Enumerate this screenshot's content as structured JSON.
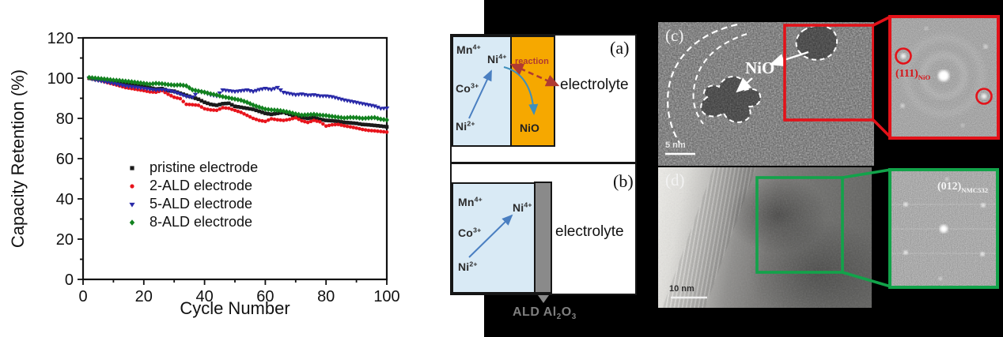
{
  "chart_data": {
    "type": "scatter",
    "xlabel": "Cycle Number",
    "ylabel": "Capacity Retention (%)",
    "xlim": [
      0,
      100
    ],
    "ylim": [
      0,
      120
    ],
    "xticks": [
      0,
      20,
      40,
      60,
      80,
      100
    ],
    "yticks": [
      0,
      20,
      40,
      60,
      80,
      100,
      120
    ],
    "grid": false,
    "legend_position": "center-left",
    "x": [
      2,
      4,
      6,
      8,
      10,
      12,
      14,
      16,
      18,
      20,
      22,
      24,
      26,
      28,
      30,
      32,
      34,
      36,
      38,
      40,
      42,
      44,
      46,
      48,
      50,
      52,
      54,
      56,
      58,
      60,
      62,
      64,
      66,
      68,
      70,
      72,
      74,
      76,
      78,
      80,
      82,
      84,
      86,
      88,
      90,
      92,
      94,
      96,
      98,
      100
    ],
    "series": [
      {
        "name": "pristine electrode",
        "marker": "square",
        "color": "#1a1a1a",
        "y": [
          100,
          99.5,
          99.2,
          98.8,
          98.3,
          97.8,
          97.2,
          96.6,
          96.2,
          95.8,
          95.2,
          94.6,
          94.8,
          93.8,
          93.5,
          92.5,
          91.5,
          90.5,
          89.5,
          88.0,
          87.0,
          86.5,
          87.3,
          87.5,
          86.0,
          85.5,
          85.0,
          84.5,
          83.5,
          82.5,
          82.0,
          82.5,
          83.0,
          82.0,
          81.0,
          80.5,
          80.0,
          80.5,
          79.5,
          79.0,
          78.8,
          78.5,
          78.0,
          77.8,
          77.5,
          77.0,
          76.8,
          76.5,
          76.2,
          75.8
        ]
      },
      {
        "name": "2-ALD electrode",
        "marker": "circle",
        "color": "#e8141c",
        "y": [
          100,
          99.3,
          98.7,
          97.8,
          97.0,
          96.2,
          95.3,
          94.8,
          94.3,
          93.8,
          93.2,
          93.0,
          93.8,
          92.0,
          90.5,
          89.8,
          87.0,
          86.8,
          86.5,
          84.8,
          84.2,
          84.0,
          85.3,
          85.0,
          84.0,
          83.0,
          81.5,
          80.0,
          79.0,
          78.5,
          79.8,
          79.3,
          79.0,
          79.5,
          80.3,
          78.8,
          78.0,
          79.0,
          78.3,
          76.2,
          76.8,
          77.0,
          76.3,
          75.8,
          75.2,
          74.5,
          74.0,
          73.8,
          73.5,
          73.2
        ]
      },
      {
        "name": "5-ALD electrode",
        "marker": "triangle-down",
        "color": "#2a2aa8",
        "y": [
          100,
          99.2,
          98.6,
          98.0,
          97.4,
          96.8,
          96.2,
          95.8,
          95.4,
          95.0,
          94.6,
          94.2,
          94.4,
          94.0,
          93.2,
          92.2,
          91.0,
          90.6,
          93.4,
          92.8,
          91.8,
          91.2,
          94.2,
          93.8,
          93.4,
          93.8,
          94.2,
          93.4,
          94.4,
          95.0,
          94.4,
          95.4,
          93.0,
          92.4,
          91.8,
          92.2,
          91.6,
          91.8,
          91.2,
          91.2,
          90.8,
          90.0,
          89.2,
          88.6,
          88.0,
          87.4,
          86.8,
          86.2,
          85.0,
          85.2
        ]
      },
      {
        "name": "8-ALD electrode",
        "marker": "diamond",
        "color": "#12821f",
        "y": [
          100.3,
          100.0,
          99.7,
          99.4,
          99.0,
          98.8,
          98.5,
          98.2,
          97.8,
          97.4,
          97.0,
          97.4,
          97.2,
          96.8,
          96.5,
          96.6,
          96.2,
          94.2,
          93.6,
          93.0,
          92.2,
          91.6,
          90.8,
          90.2,
          89.6,
          89.0,
          88.0,
          86.6,
          85.6,
          84.6,
          84.2,
          84.0,
          83.6,
          83.0,
          82.2,
          81.6,
          81.8,
          82.0,
          81.6,
          81.4,
          81.0,
          80.6,
          80.2,
          80.5,
          80.4,
          80.0,
          80.2,
          80.4,
          79.6,
          79.2
        ]
      }
    ]
  },
  "diagram": {
    "panel_a": {
      "tag": "(a)",
      "mn": {
        "base": "Mn",
        "sup": "4+"
      },
      "ni4": {
        "base": "Ni",
        "sup": "4+"
      },
      "co": {
        "base": "Co",
        "sup": "3+"
      },
      "ni2": {
        "base": "Ni",
        "sup": "2+"
      },
      "reaction_label": "reaction",
      "nio_label": "NiO",
      "electrolyte_label": "electrolyte"
    },
    "panel_b": {
      "tag": "(b)",
      "mn": {
        "base": "Mn",
        "sup": "4+"
      },
      "ni4": {
        "base": "Ni",
        "sup": "4+"
      },
      "co": {
        "base": "Co",
        "sup": "3+"
      },
      "ni2": {
        "base": "Ni",
        "sup": "2+"
      },
      "electrolyte_label": "electrolyte",
      "ald_label": {
        "t1": "ALD Al",
        "s1": "2",
        "t2": "O",
        "s2": "3"
      }
    },
    "colors": {
      "cathode_fill": "#d9eaf5",
      "nio_fill": "#f6a800",
      "ald_fill": "#8a8a8a",
      "arrow_blue": "#4a7fc1",
      "arrow_red": "#b03a31"
    }
  },
  "tem": {
    "panel_c": {
      "tag": "(c)",
      "nio_label": "NiO",
      "scale_label": "5 nm"
    },
    "panel_d": {
      "tag": "(d)",
      "scale_label": "10 nm"
    },
    "fft_nio": {
      "label_base": "(111)",
      "label_sub": "NiO"
    },
    "fft_nmc": {
      "label_base": "(012)",
      "label_sub": "NMC532"
    },
    "colors": {
      "highlight_red": "#e31219",
      "highlight_green": "#12a34a"
    }
  }
}
